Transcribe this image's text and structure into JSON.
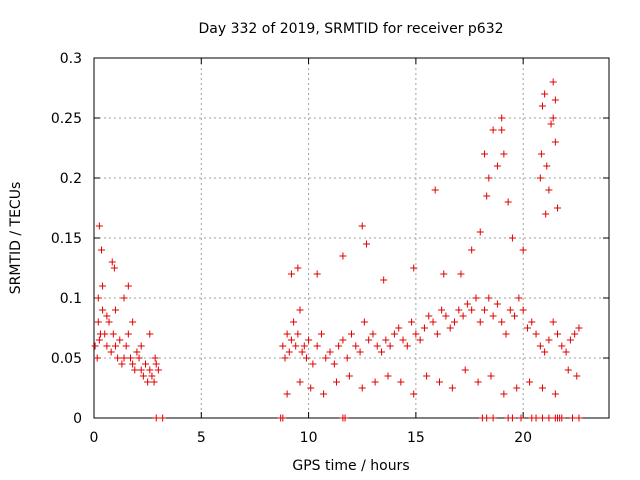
{
  "chart_data": {
    "type": "scatter",
    "title": "Day 332 of 2019, SRMTID for receiver p632",
    "xlabel": "GPS time / hours",
    "ylabel": "SRMTID / TECUs",
    "xlim": [
      0,
      24
    ],
    "ylim": [
      0,
      0.3
    ],
    "grid": true,
    "x_ticks": [
      "0",
      "5",
      "10",
      "15",
      "20"
    ],
    "y_ticks": [
      "0",
      "0.05",
      "0.1",
      "0.15",
      "0.2",
      "0.25",
      "0.3"
    ],
    "series": [
      {
        "name": "SRMTID",
        "marker": "plus",
        "color": "#e00000",
        "x": [
          0.05,
          0.15,
          0.2,
          0.25,
          0.3,
          0.4,
          0.5,
          0.6,
          0.7,
          0.8,
          0.9,
          1.0,
          1.1,
          1.2,
          1.3,
          1.4,
          1.5,
          1.6,
          1.7,
          1.8,
          1.9,
          2.0,
          2.1,
          2.2,
          2.3,
          2.4,
          2.5,
          2.6,
          2.7,
          2.8,
          2.9,
          0.25,
          0.35,
          0.85,
          0.95,
          1.6,
          0.2,
          0.4,
          0.6,
          1.0,
          1.4,
          1.8,
          2.2,
          2.6,
          2.85,
          3.0,
          8.8,
          8.9,
          9.0,
          9.1,
          9.2,
          9.3,
          9.4,
          9.5,
          9.6,
          9.7,
          9.8,
          9.9,
          10.0,
          10.2,
          10.4,
          10.6,
          10.8,
          11.0,
          11.2,
          11.4,
          11.6,
          11.8,
          12.0,
          12.2,
          12.4,
          12.6,
          12.8,
          13.0,
          13.2,
          13.4,
          13.6,
          13.8,
          14.0,
          14.2,
          14.4,
          14.6,
          14.8,
          15.0,
          15.2,
          15.4,
          15.6,
          15.8,
          16.0,
          16.2,
          16.4,
          16.6,
          16.8,
          17.0,
          17.2,
          17.4,
          17.6,
          17.8,
          18.0,
          18.2,
          18.4,
          18.6,
          18.8,
          19.0,
          19.2,
          19.4,
          19.6,
          19.8,
          20.0,
          20.2,
          20.4,
          20.6,
          20.8,
          21.0,
          21.2,
          21.4,
          21.6,
          21.8,
          22.0,
          22.2,
          22.4,
          22.6,
          9.5,
          9.2,
          10.4,
          12.5,
          12.7,
          11.6,
          13.5,
          14.9,
          15.9,
          16.3,
          17.1,
          17.6,
          18.0,
          18.2,
          18.4,
          18.6,
          18.8,
          19.0,
          19.1,
          19.3,
          19.5,
          20.0,
          20.8,
          20.9,
          21.0,
          21.1,
          21.2,
          21.3,
          21.4,
          21.5,
          21.6,
          18.3,
          19.0,
          21.5,
          21.4,
          20.85,
          21.05,
          9.0,
          9.6,
          10.1,
          10.7,
          11.3,
          11.9,
          12.5,
          13.1,
          13.7,
          14.3,
          14.9,
          15.5,
          16.1,
          16.7,
          17.3,
          17.9,
          18.5,
          19.1,
          19.7,
          20.3,
          20.9,
          21.5,
          22.1,
          22.5
        ],
        "y": [
          0.06,
          0.05,
          0.08,
          0.065,
          0.07,
          0.09,
          0.07,
          0.06,
          0.08,
          0.055,
          0.07,
          0.06,
          0.05,
          0.065,
          0.045,
          0.05,
          0.06,
          0.07,
          0.05,
          0.045,
          0.04,
          0.055,
          0.05,
          0.04,
          0.035,
          0.045,
          0.03,
          0.04,
          0.035,
          0.03,
          0.045,
          0.16,
          0.14,
          0.13,
          0.125,
          0.11,
          0.1,
          0.11,
          0.085,
          0.09,
          0.1,
          0.08,
          0.06,
          0.07,
          0.05,
          0.04,
          0.06,
          0.05,
          0.07,
          0.055,
          0.065,
          0.08,
          0.06,
          0.07,
          0.09,
          0.055,
          0.06,
          0.05,
          0.065,
          0.045,
          0.06,
          0.07,
          0.05,
          0.055,
          0.045,
          0.06,
          0.065,
          0.05,
          0.07,
          0.06,
          0.055,
          0.08,
          0.065,
          0.07,
          0.06,
          0.055,
          0.065,
          0.06,
          0.07,
          0.075,
          0.065,
          0.06,
          0.08,
          0.07,
          0.065,
          0.075,
          0.085,
          0.08,
          0.07,
          0.09,
          0.085,
          0.075,
          0.08,
          0.09,
          0.085,
          0.095,
          0.09,
          0.1,
          0.08,
          0.09,
          0.1,
          0.085,
          0.095,
          0.08,
          0.07,
          0.09,
          0.085,
          0.1,
          0.09,
          0.075,
          0.08,
          0.07,
          0.06,
          0.055,
          0.065,
          0.08,
          0.07,
          0.06,
          0.055,
          0.065,
          0.07,
          0.075,
          0.125,
          0.12,
          0.12,
          0.16,
          0.145,
          0.135,
          0.115,
          0.125,
          0.19,
          0.12,
          0.12,
          0.14,
          0.155,
          0.22,
          0.2,
          0.24,
          0.21,
          0.25,
          0.22,
          0.18,
          0.15,
          0.14,
          0.2,
          0.26,
          0.27,
          0.21,
          0.19,
          0.245,
          0.28,
          0.23,
          0.175,
          0.185,
          0.24,
          0.265,
          0.25,
          0.22,
          0.17,
          0.02,
          0.03,
          0.025,
          0.02,
          0.03,
          0.035,
          0.025,
          0.03,
          0.035,
          0.03,
          0.02,
          0.035,
          0.03,
          0.025,
          0.04,
          0.03,
          0.035,
          0.02,
          0.025,
          0.03,
          0.025,
          0.02,
          0.04,
          0.035
        ],
        "zero_markers_x": [
          2.9,
          3.2,
          8.7,
          8.8,
          11.6,
          11.7,
          18.1,
          18.3,
          18.6,
          19.3,
          19.5,
          19.9,
          20.4,
          20.6,
          20.9,
          21.2,
          21.5,
          21.6,
          21.7,
          21.8,
          22.3,
          22.6
        ]
      }
    ]
  }
}
